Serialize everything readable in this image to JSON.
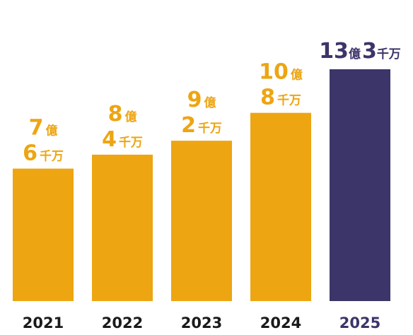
{
  "chart_data": {
    "type": "bar",
    "title": "",
    "xlabel": "",
    "ylabel": "",
    "categories": [
      "2021",
      "2022",
      "2023",
      "2024",
      "2025"
    ],
    "values": [
      760000000,
      840000000,
      920000000,
      1080000000,
      1330000000
    ],
    "ylim": [
      0,
      1330000000
    ],
    "grid": false,
    "legend": "none",
    "data_labels": [
      [
        {
          "num": "7",
          "unit": "億"
        },
        {
          "num": "6",
          "unit": "千万"
        }
      ],
      [
        {
          "num": "8",
          "unit": "億"
        },
        {
          "num": "4",
          "unit": "千万"
        }
      ],
      [
        {
          "num": "9",
          "unit": "億"
        },
        {
          "num": "2",
          "unit": "千万"
        }
      ],
      [
        {
          "num": "10",
          "unit": "億"
        },
        {
          "num": "8",
          "unit": "千万"
        }
      ],
      [
        {
          "num": "13",
          "unit": "億"
        },
        {
          "num": "3",
          "unit": "千万"
        }
      ]
    ],
    "highlight_index": 4,
    "colors": {
      "bar": "#EDA512",
      "highlight": "#3B356A",
      "tick": "#1A1A1A"
    }
  }
}
